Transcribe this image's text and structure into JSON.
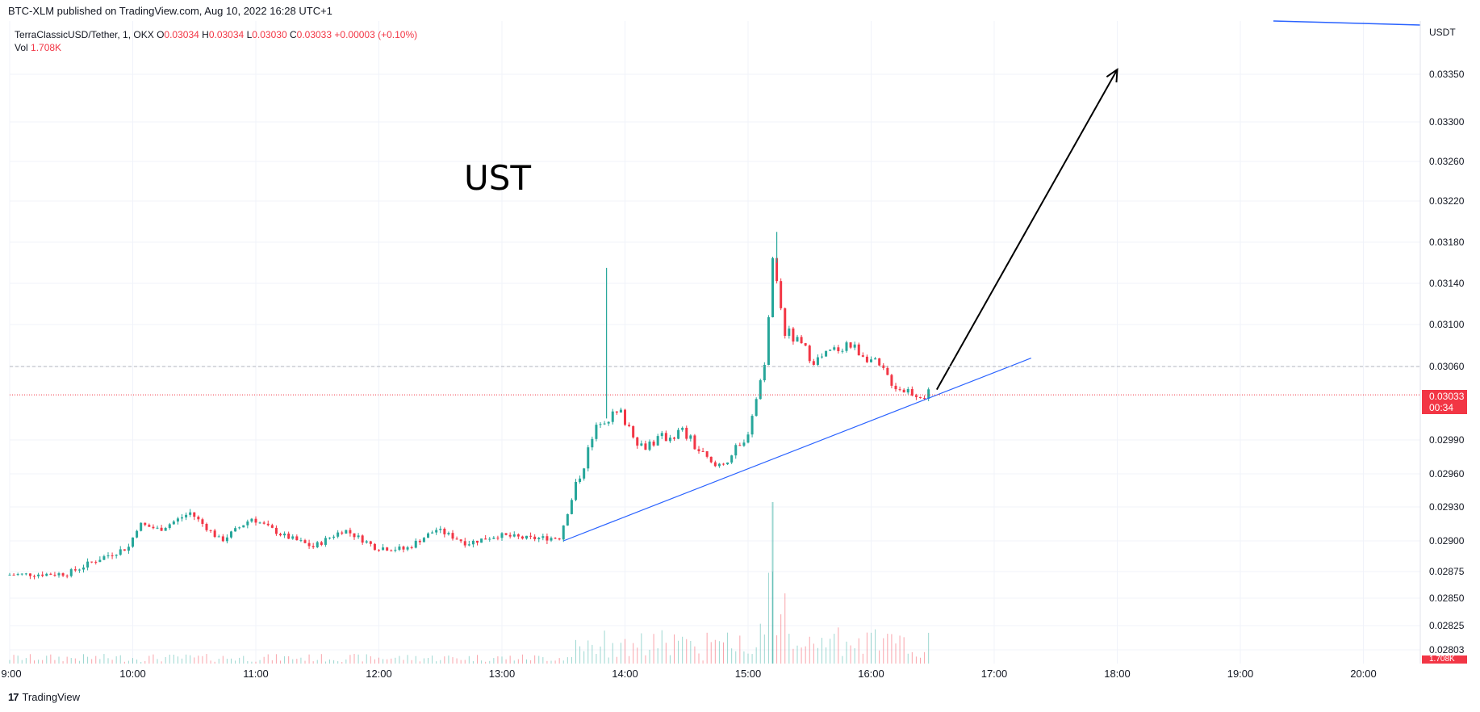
{
  "caption": "BTC-XLM published on TradingView.com, Aug 10, 2022 16:28 UTC+1",
  "legend": {
    "symbol": "TerraClassicUSD/Tether, 1, OKX",
    "o_label": "O",
    "o_value": "0.03034",
    "h_label": "H",
    "h_value": "0.03034",
    "l_label": "L",
    "l_value": "0.03030",
    "c_label": "C",
    "c_value": "0.03033",
    "change": "+0.00003 (+0.10%)",
    "vol_label": "Vol",
    "vol_value": "1.708K"
  },
  "annotation_text": "UST",
  "axis": {
    "currency": "USDT",
    "last_price": "0.03033",
    "countdown": "00:34",
    "vol_badge": "1.708K"
  },
  "footer": {
    "logo": "17",
    "brand": "TradingView"
  },
  "colors": {
    "up": "#26a69a",
    "down": "#f23645",
    "trendline": "#2962ff",
    "arrow": "#000000",
    "grid": "#f0f3fa"
  },
  "chart_data": {
    "type": "candlestick",
    "title": "UST",
    "interval": "1",
    "y_ticks": [
      "0.03350",
      "0.03300",
      "0.03260",
      "0.03220",
      "0.03180",
      "0.03140",
      "0.03100",
      "0.03060",
      "0.02990",
      "0.02960",
      "0.02930",
      "0.02900",
      "0.02875",
      "0.02850",
      "0.02825",
      "0.02803"
    ],
    "x_ticks": [
      "9:00",
      "10:00",
      "11:00",
      "12:00",
      "13:00",
      "14:00",
      "15:00",
      "16:00",
      "17:00",
      "18:00",
      "19:00",
      "20:00"
    ],
    "x_range": [
      "09:00",
      "20:30"
    ],
    "y_range": [
      0.028,
      0.0338
    ],
    "last_close": 0.03033,
    "price_path": [
      {
        "t": "09:00",
        "p": 0.02872
      },
      {
        "t": "09:30",
        "p": 0.02873
      },
      {
        "t": "09:45",
        "p": 0.02885
      },
      {
        "t": "10:00",
        "p": 0.02895
      },
      {
        "t": "10:05",
        "p": 0.02915
      },
      {
        "t": "10:15",
        "p": 0.0291
      },
      {
        "t": "10:30",
        "p": 0.02925
      },
      {
        "t": "10:45",
        "p": 0.029
      },
      {
        "t": "11:00",
        "p": 0.0292
      },
      {
        "t": "11:15",
        "p": 0.02905
      },
      {
        "t": "11:30",
        "p": 0.02895
      },
      {
        "t": "11:45",
        "p": 0.0291
      },
      {
        "t": "12:00",
        "p": 0.02895
      },
      {
        "t": "12:15",
        "p": 0.02893
      },
      {
        "t": "12:30",
        "p": 0.0291
      },
      {
        "t": "12:45",
        "p": 0.02898
      },
      {
        "t": "13:00",
        "p": 0.02905
      },
      {
        "t": "13:15",
        "p": 0.02902
      },
      {
        "t": "13:30",
        "p": 0.02903
      },
      {
        "t": "13:40",
        "p": 0.0296
      },
      {
        "t": "13:50",
        "p": 0.0301
      },
      {
        "t": "14:00",
        "p": 0.03015
      },
      {
        "t": "14:10",
        "p": 0.02985
      },
      {
        "t": "14:30",
        "p": 0.02998
      },
      {
        "t": "14:45",
        "p": 0.02965
      },
      {
        "t": "15:00",
        "p": 0.02985
      },
      {
        "t": "15:10",
        "p": 0.0306
      },
      {
        "t": "15:14",
        "p": 0.0316
      },
      {
        "t": "15:20",
        "p": 0.03095
      },
      {
        "t": "15:35",
        "p": 0.03065
      },
      {
        "t": "15:50",
        "p": 0.03082
      },
      {
        "t": "16:00",
        "p": 0.0307
      },
      {
        "t": "16:15",
        "p": 0.0304
      },
      {
        "t": "16:28",
        "p": 0.03033
      }
    ],
    "wick_highs": [
      {
        "t": "13:51",
        "p": 0.03155
      },
      {
        "t": "15:14",
        "p": 0.0319
      }
    ],
    "volume_spikes": [
      {
        "t": "15:12",
        "v": "1.708K"
      }
    ],
    "drawings": [
      {
        "type": "trendline",
        "from": {
          "t": "13:30",
          "p": 0.029
        },
        "to": {
          "t": "17:18",
          "p": 0.03068
        }
      },
      {
        "type": "arrow",
        "from": {
          "t": "16:32",
          "p": 0.03038
        },
        "to": {
          "t": "18:00",
          "p": 0.03355
        }
      },
      {
        "type": "horizontal",
        "p": 0.0306,
        "style": "dashed"
      }
    ]
  }
}
